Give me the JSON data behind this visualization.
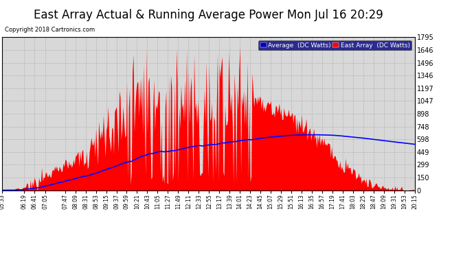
{
  "title": "East Array Actual & Running Average Power Mon Jul 16 20:29",
  "copyright": "Copyright 2018 Cartronics.com",
  "legend_avg": "Average  (DC Watts)",
  "legend_east": "East Array  (DC Watts)",
  "yticks": [
    0.0,
    149.6,
    299.2,
    448.8,
    598.3,
    747.9,
    897.5,
    1047.1,
    1196.7,
    1346.3,
    1495.9,
    1645.5,
    1795.0
  ],
  "ymax": 1795.0,
  "ymin": 0.0,
  "background_color": "#ffffff",
  "plot_bg_color": "#d8d8d8",
  "grid_color": "#aaaaaa",
  "fill_color": "#ff0000",
  "avg_line_color": "#0000ff",
  "title_color": "#000000",
  "title_fontsize": 12,
  "xtick_labels": [
    "05:33",
    "06:19",
    "06:41",
    "07:05",
    "07:47",
    "08:09",
    "08:31",
    "08:53",
    "09:15",
    "09:37",
    "09:59",
    "10:21",
    "10:43",
    "11:05",
    "11:27",
    "11:49",
    "12:11",
    "12:33",
    "12:55",
    "13:17",
    "13:39",
    "14:01",
    "14:23",
    "14:45",
    "15:07",
    "15:29",
    "15:51",
    "16:13",
    "16:35",
    "16:57",
    "17:19",
    "17:41",
    "18:03",
    "18:25",
    "18:47",
    "19:09",
    "19:31",
    "19:53",
    "20:15"
  ]
}
